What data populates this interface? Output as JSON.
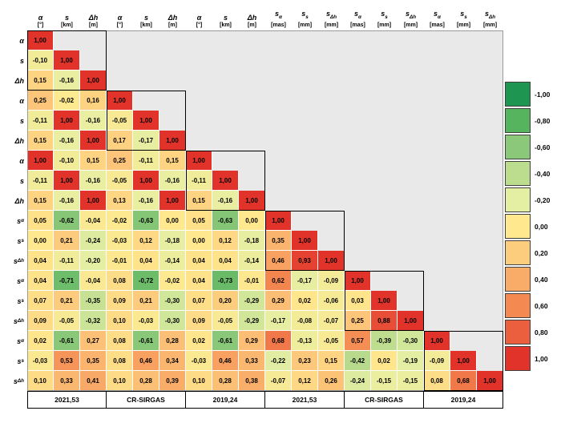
{
  "chart_data": {
    "type": "heatmap",
    "description": "Lower-triangular correlation matrix of geodetic quantities and their standard deviations at three epochs",
    "rows": [
      "α",
      "s",
      "Δh",
      "α",
      "s",
      "Δh",
      "α",
      "s",
      "Δh",
      "sα",
      "ss",
      "sΔh",
      "sα",
      "ss",
      "sΔh",
      "sα",
      "ss",
      "sΔh"
    ],
    "columns": [
      {
        "symbol": "α",
        "unit": "[°]"
      },
      {
        "symbol": "s",
        "unit": "[km]"
      },
      {
        "symbol": "Δh",
        "unit": "[m]"
      },
      {
        "symbol": "α",
        "unit": "[°]"
      },
      {
        "symbol": "s",
        "unit": "[km]"
      },
      {
        "symbol": "Δh",
        "unit": "[m]"
      },
      {
        "symbol": "α",
        "unit": "[°]"
      },
      {
        "symbol": "s",
        "unit": "[km]"
      },
      {
        "symbol": "Δh",
        "unit": "[m]"
      },
      {
        "symbol": "sα",
        "unit": "[mas]"
      },
      {
        "symbol": "ss",
        "unit": "[mm]"
      },
      {
        "symbol": "sΔh",
        "unit": "[mm]"
      },
      {
        "symbol": "sα",
        "unit": "[mas]"
      },
      {
        "symbol": "ss",
        "unit": "[mm]"
      },
      {
        "symbol": "sΔh",
        "unit": "[mm]"
      },
      {
        "symbol": "sα",
        "unit": "[mas]"
      },
      {
        "symbol": "ss",
        "unit": "[mm]"
      },
      {
        "symbol": "sΔh",
        "unit": "[mm]"
      }
    ],
    "column_groups": [
      {
        "label": "2021,53",
        "span": 3
      },
      {
        "label": "CR-SIRGAS",
        "span": 3
      },
      {
        "label": "2019,24",
        "span": 3
      },
      {
        "label": "2021,53",
        "span": 3
      },
      {
        "label": "CR-SIRGAS",
        "span": 3
      },
      {
        "label": "2019,24",
        "span": 3
      }
    ],
    "values": [
      [
        1.0
      ],
      [
        -0.1,
        1.0
      ],
      [
        0.15,
        -0.16,
        1.0
      ],
      [
        0.25,
        -0.02,
        0.16,
        1.0
      ],
      [
        -0.11,
        1.0,
        -0.16,
        -0.05,
        1.0
      ],
      [
        0.15,
        -0.16,
        1.0,
        0.17,
        -0.17,
        1.0
      ],
      [
        1.0,
        -0.1,
        0.15,
        0.25,
        -0.11,
        0.15,
        1.0
      ],
      [
        -0.11,
        1.0,
        -0.16,
        -0.05,
        1.0,
        -0.16,
        -0.11,
        1.0
      ],
      [
        0.15,
        -0.16,
        1.0,
        0.13,
        -0.16,
        1.0,
        0.15,
        -0.16,
        1.0
      ],
      [
        0.05,
        -0.62,
        -0.04,
        -0.02,
        -0.63,
        0.0,
        0.05,
        -0.63,
        0.0,
        1.0
      ],
      [
        0.0,
        0.21,
        -0.24,
        -0.03,
        0.12,
        -0.18,
        0.0,
        0.12,
        -0.18,
        0.35,
        1.0
      ],
      [
        0.04,
        -0.11,
        -0.2,
        -0.01,
        0.04,
        -0.14,
        0.04,
        0.04,
        -0.14,
        0.46,
        0.93,
        1.0
      ],
      [
        0.04,
        -0.71,
        -0.04,
        0.08,
        -0.72,
        -0.02,
        0.04,
        -0.73,
        -0.01,
        0.62,
        -0.17,
        -0.09,
        1.0
      ],
      [
        0.07,
        0.21,
        -0.35,
        0.09,
        0.21,
        -0.3,
        0.07,
        0.2,
        -0.29,
        0.29,
        0.02,
        -0.06,
        0.03,
        1.0
      ],
      [
        0.09,
        -0.05,
        -0.32,
        0.1,
        -0.03,
        -0.3,
        0.09,
        -0.05,
        -0.29,
        -0.17,
        -0.08,
        -0.07,
        0.25,
        0.88,
        1.0
      ],
      [
        0.02,
        -0.61,
        0.27,
        0.08,
        -0.61,
        0.28,
        0.02,
        -0.61,
        0.29,
        0.68,
        -0.13,
        -0.05,
        0.57,
        -0.39,
        -0.3,
        1.0
      ],
      [
        -0.03,
        0.53,
        0.35,
        0.08,
        0.46,
        0.34,
        -0.03,
        0.46,
        0.33,
        -0.22,
        0.23,
        0.15,
        -0.42,
        0.02,
        -0.19,
        -0.09,
        1.0
      ],
      [
        0.1,
        0.33,
        0.41,
        0.1,
        0.28,
        0.39,
        0.1,
        0.28,
        0.38,
        -0.07,
        0.12,
        0.26,
        -0.24,
        -0.15,
        -0.15,
        0.08,
        0.68,
        1.0
      ]
    ],
    "value_range": [
      -1,
      1
    ],
    "decimal_separator": ",",
    "legend": {
      "position": "right",
      "entries": [
        {
          "label": "-1,00",
          "value": -1.0,
          "color": "#1e9550"
        },
        {
          "label": "-0,80",
          "value": -0.8,
          "color": "#56b45e"
        },
        {
          "label": "-0,60",
          "value": -0.6,
          "color": "#8cc87a"
        },
        {
          "label": "-0,40",
          "value": -0.4,
          "color": "#bcdc8e"
        },
        {
          "label": "-0,20",
          "value": -0.2,
          "color": "#e4efa4"
        },
        {
          "label": "0,00",
          "value": 0.0,
          "color": "#ffe88e"
        },
        {
          "label": "0,20",
          "value": 0.2,
          "color": "#fdcd7e"
        },
        {
          "label": "0,40",
          "value": 0.4,
          "color": "#f9ab68"
        },
        {
          "label": "0,60",
          "value": 0.6,
          "color": "#f48951"
        },
        {
          "label": "0,80",
          "value": 0.8,
          "color": "#ec5f3e"
        },
        {
          "label": "1,00",
          "value": 1.0,
          "color": "#e1332a"
        }
      ]
    }
  },
  "colors": {
    "empty_cell": "#e9e9e9",
    "cell_text": "#000000",
    "block_outline": "#000000",
    "grid_line": "#ffffff",
    "matrix_border": "#9a9a9a"
  }
}
